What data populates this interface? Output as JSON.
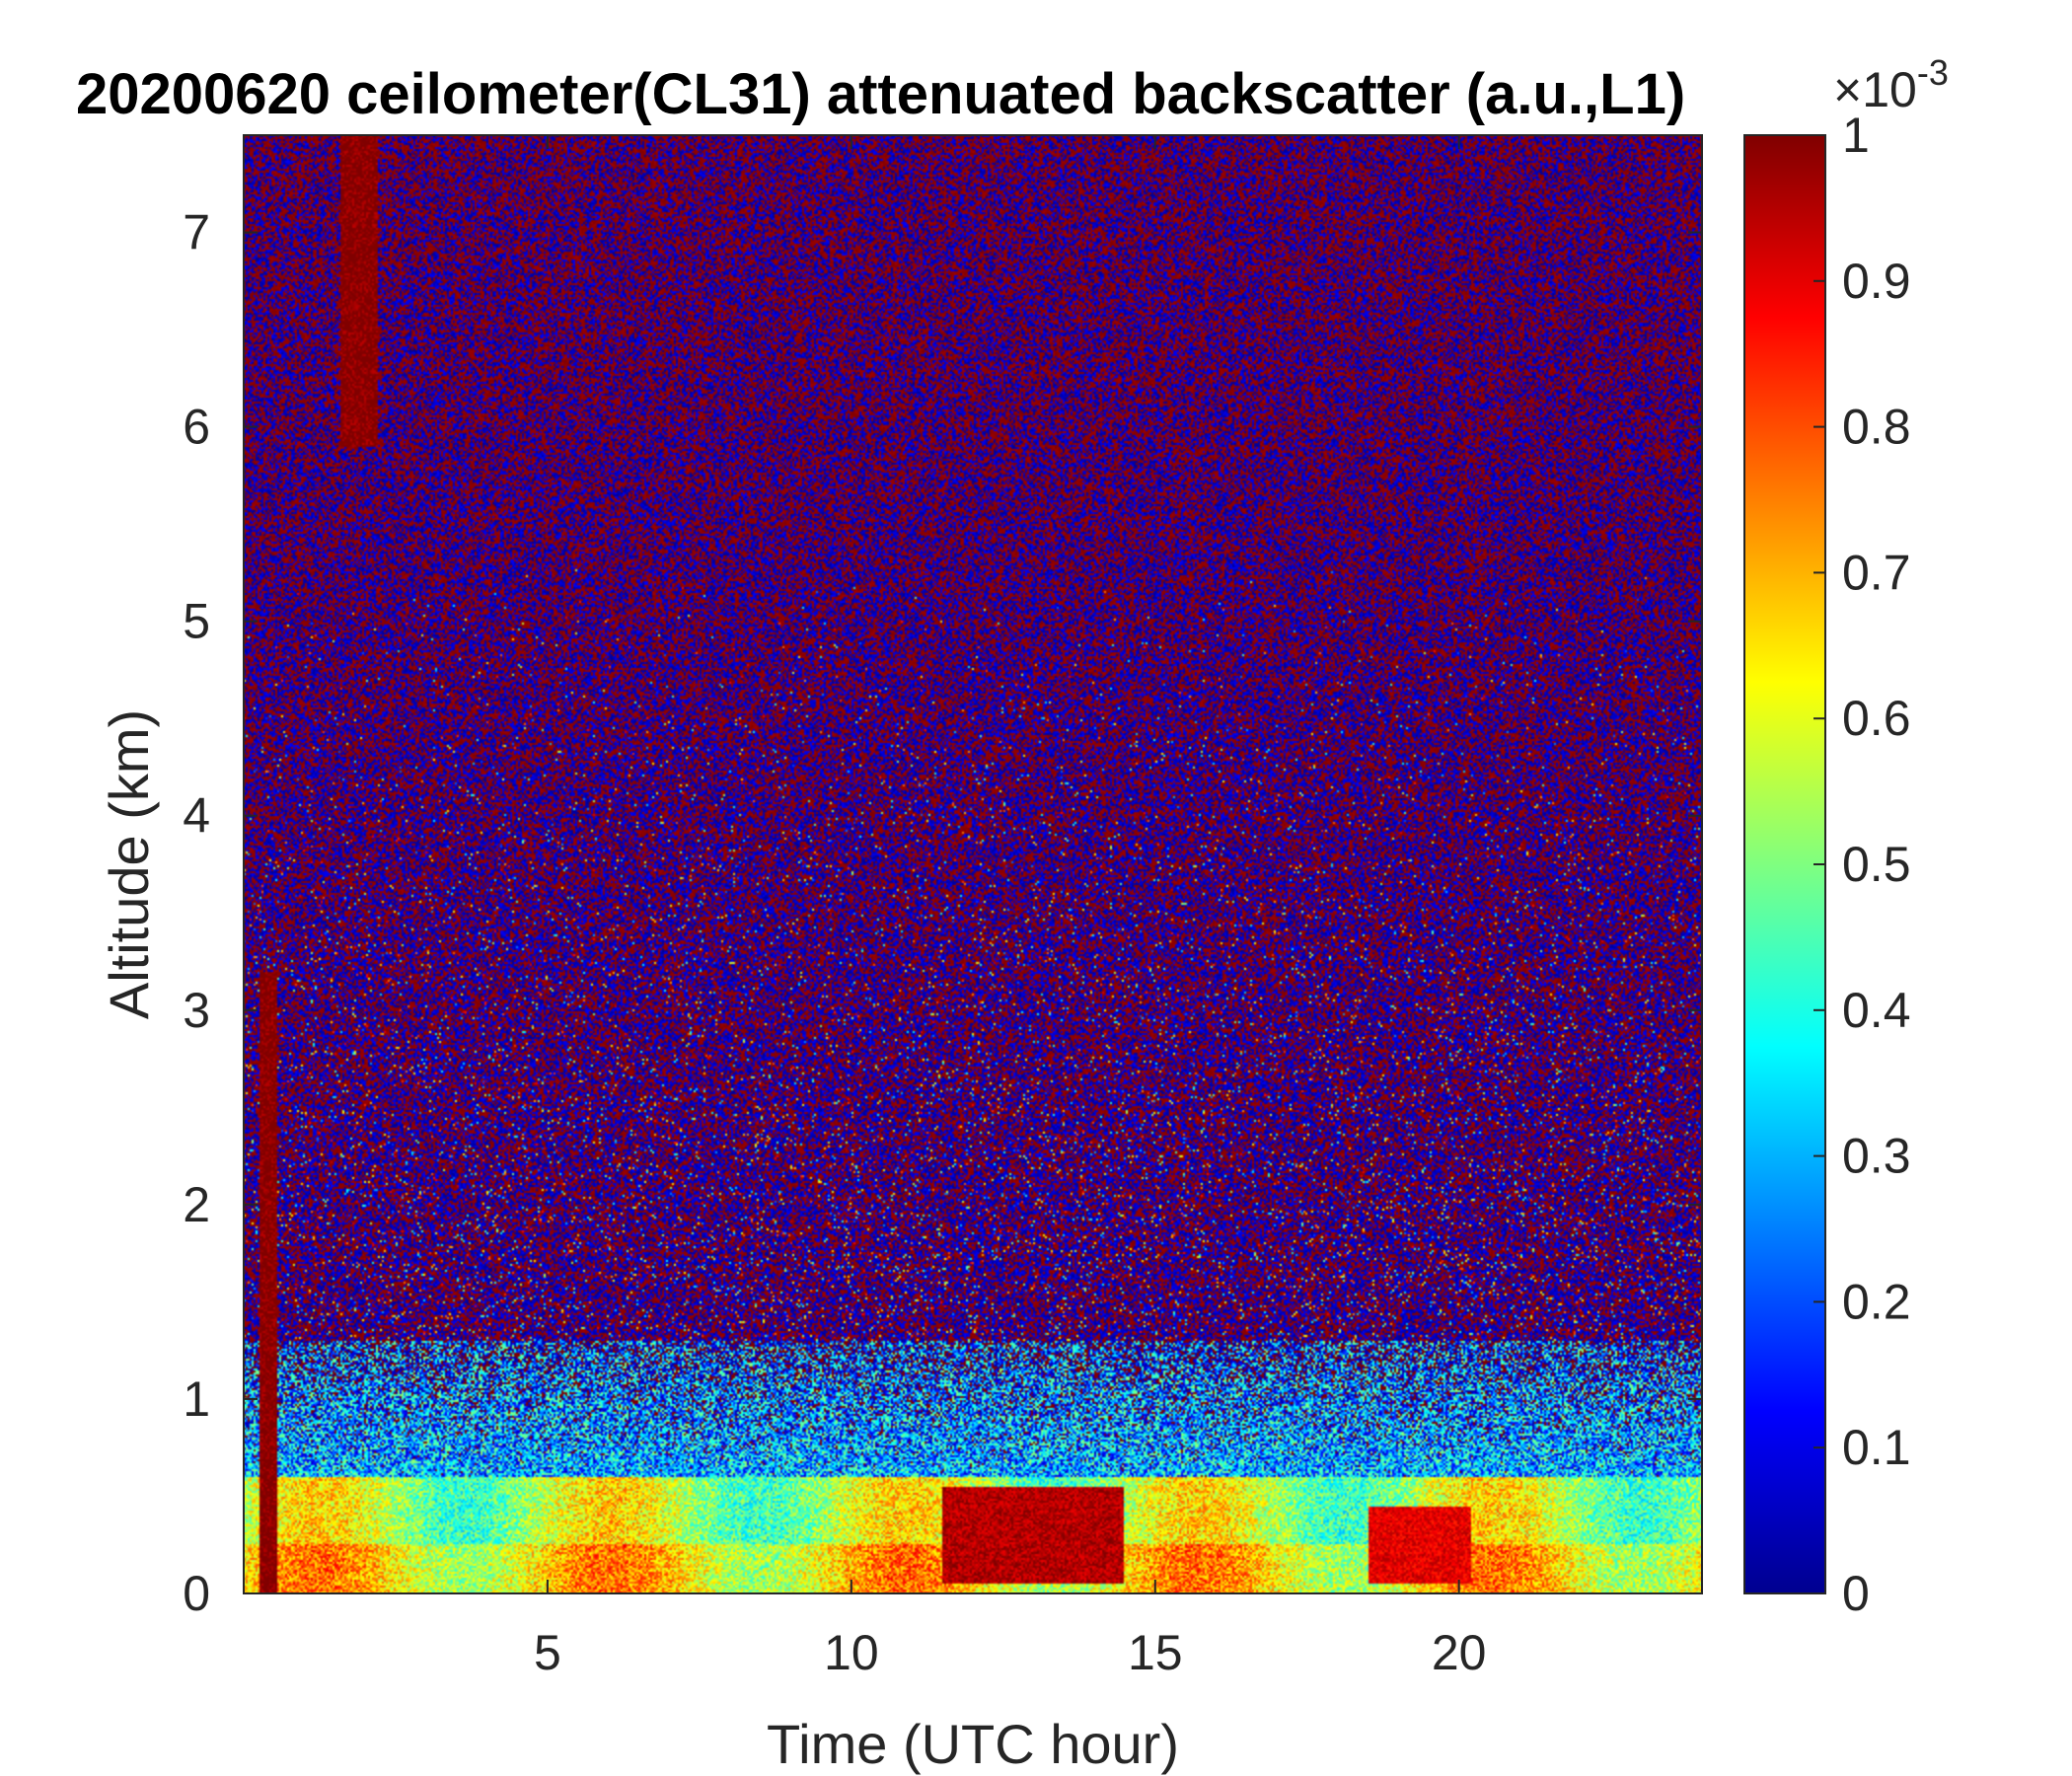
{
  "chart_data": {
    "type": "heatmap",
    "title": "20200620 ceilometer(CL31) attenuated backscatter (a.u.,L1)",
    "xlabel": "Time (UTC hour)",
    "ylabel": "Altitude (km)",
    "xlim": [
      0,
      24
    ],
    "ylim": [
      0,
      7.5
    ],
    "xticks": [
      5,
      10,
      15,
      20
    ],
    "yticks": [
      0,
      1,
      2,
      3,
      4,
      5,
      6,
      7
    ],
    "colorbar": {
      "colormap": "jet",
      "clim": [
        0,
        1
      ],
      "exponent_label": "×10",
      "exponent": "-3",
      "ticks": [
        0,
        0.1,
        0.2,
        0.3,
        0.4,
        0.5,
        0.6,
        0.7,
        0.8,
        0.9,
        1
      ],
      "tick_labels": [
        "0",
        "0.1",
        "0.2",
        "0.3",
        "0.4",
        "0.5",
        "0.6",
        "0.7",
        "0.8",
        "0.9",
        "1"
      ]
    },
    "features": [
      {
        "kind": "boundary_layer_aerosol",
        "x": [
          0,
          24
        ],
        "y_top": 0.6,
        "value": 0.6
      },
      {
        "kind": "strong_aerosol_layer",
        "x": [
          11.5,
          14.5
        ],
        "y": [
          0.05,
          0.55
        ],
        "value": 0.95
      },
      {
        "kind": "strong_aerosol_layer",
        "x": [
          18.5,
          20.2
        ],
        "y": [
          0.05,
          0.45
        ],
        "value": 0.9
      },
      {
        "kind": "precipitation_streak",
        "x": [
          0.25,
          0.55
        ],
        "y": [
          0,
          3.2
        ],
        "value": 1.0
      },
      {
        "kind": "precipitation_streak",
        "x": [
          1.6,
          2.2
        ],
        "y": [
          5.9,
          7.5
        ],
        "value": 1.0
      }
    ]
  },
  "colors": {
    "axis": "#262626",
    "title": "#000000",
    "background": "#ffffff"
  }
}
